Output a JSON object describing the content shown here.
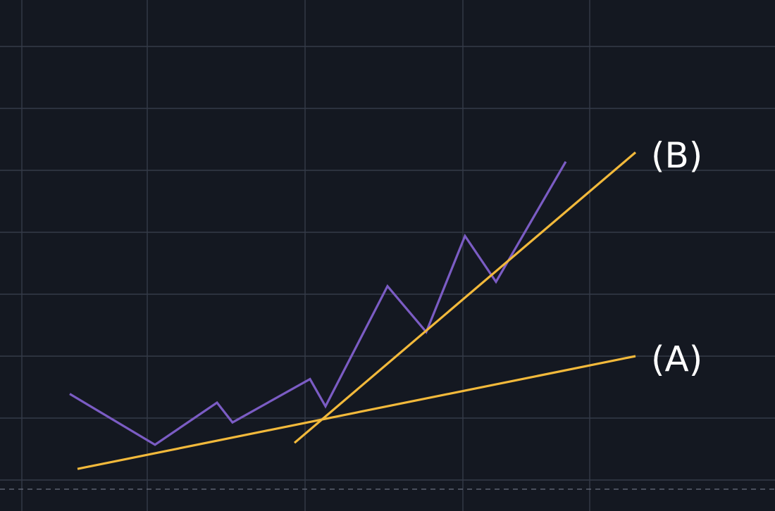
{
  "chart_data": {
    "type": "line",
    "title": "",
    "xlabel": "",
    "ylabel": "",
    "grid": true,
    "xlim": [
      0,
      10
    ],
    "ylim": [
      0,
      7
    ],
    "series": [
      {
        "points": [
          [
            0.9,
            1.39
          ],
          [
            2.0,
            0.57
          ],
          [
            2.8,
            1.25
          ],
          [
            3.0,
            0.93
          ],
          [
            4.0,
            1.63
          ],
          [
            4.2,
            1.19
          ],
          [
            5.0,
            3.13
          ],
          [
            5.5,
            2.39
          ],
          [
            6.0,
            3.94
          ],
          [
            6.4,
            3.2
          ],
          [
            7.3,
            5.14
          ]
        ],
        "color": "#7b5cc4"
      }
    ],
    "annotations": [
      {
        "label": "(A)",
        "points": [
          [
            1.0,
            0.18
          ],
          [
            8.2,
            2.0
          ]
        ],
        "color": "#f2b93b"
      },
      {
        "label": "(B)",
        "points": [
          [
            3.8,
            0.6
          ],
          [
            8.2,
            5.29
          ]
        ],
        "color": "#f2b93b"
      }
    ]
  }
}
